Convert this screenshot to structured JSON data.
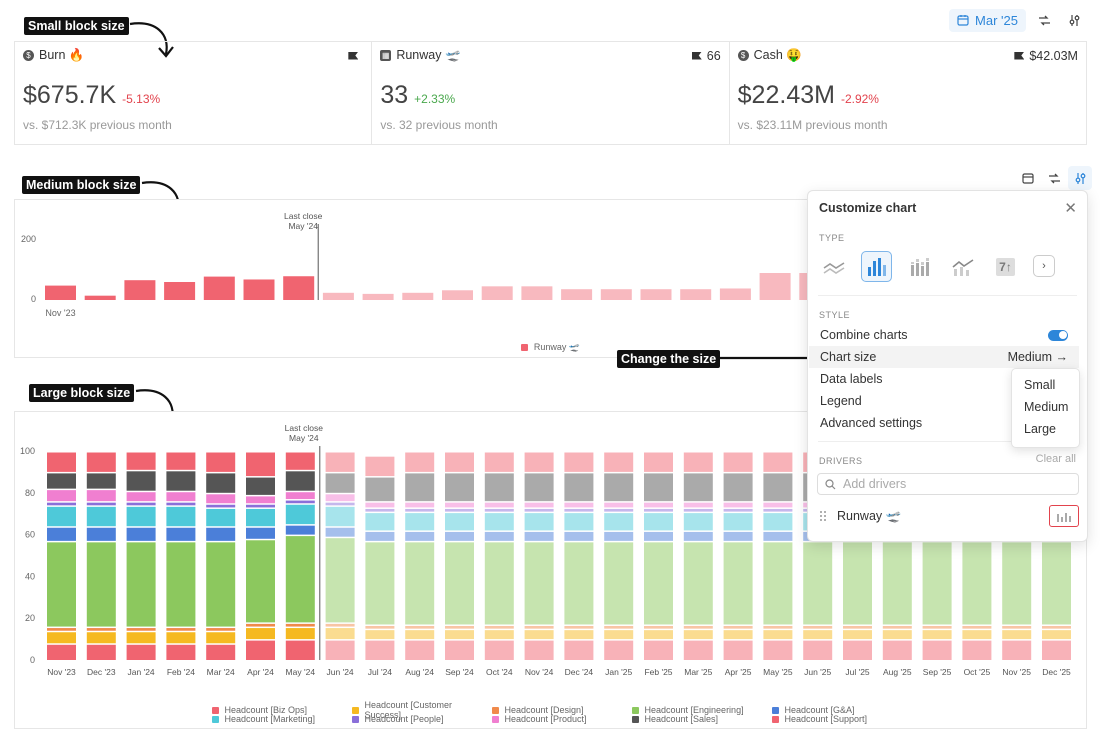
{
  "header": {
    "date_label": "Mar '25"
  },
  "annotations": {
    "small": "Small block size",
    "medium": "Medium block size",
    "large": "Large block size",
    "change": "Change the size"
  },
  "kpis": [
    {
      "name": "Burn 🔥",
      "right": "",
      "value": "$675.7K",
      "delta": "-5.13%",
      "delta_dir": "neg",
      "sub": "vs. $712.3K previous month",
      "icon": "dollar-icon"
    },
    {
      "name": "Runway 🛫",
      "right": "66",
      "value": "33",
      "delta": "+2.33%",
      "delta_dir": "pos",
      "sub": "vs. 32 previous month",
      "icon": "grid-icon"
    },
    {
      "name": "Cash 🤑",
      "right": "$42.03M",
      "value": "$22.43M",
      "delta": "-2.92%",
      "delta_dir": "neg",
      "sub": "vs. $23.11M previous month",
      "icon": "dollar-icon"
    }
  ],
  "panel": {
    "title": "Customize chart",
    "type_label": "TYPE",
    "style_label": "STYLE",
    "type_seven": "7↑",
    "combine_charts": "Combine charts",
    "chart_size": "Chart size",
    "chart_size_value": "Medium →",
    "data_labels": "Data labels",
    "legend": "Legend",
    "advanced": "Advanced settings",
    "drivers_label": "DRIVERS",
    "clear_all": "Clear all",
    "add_placeholder": "Add drivers",
    "driver_name": "Runway 🛫",
    "size_options": [
      "Small",
      "Medium",
      "Large"
    ]
  },
  "chart_data": [
    {
      "type": "bar",
      "title": "",
      "annotation": [
        "Last close",
        "May '24"
      ],
      "y_ticks": [
        "200",
        "0"
      ],
      "ylim": [
        0,
        200
      ],
      "x_tick_label": "Nov '23",
      "series": [
        {
          "name": "Runway 🛫",
          "color": "#f06470",
          "values": [
            40,
            12,
            55,
            50,
            65,
            57,
            66,
            20,
            17,
            20,
            27,
            38,
            38,
            30,
            30,
            30,
            30,
            32,
            75,
            75
          ]
        }
      ]
    },
    {
      "type": "bar",
      "stacked": true,
      "title": "",
      "annotation": [
        "Last close",
        "May '24"
      ],
      "y_ticks": [
        "100",
        "80",
        "60",
        "40",
        "20",
        "0"
      ],
      "ylim": [
        0,
        100
      ],
      "actual_count": 7,
      "categories": [
        "Nov '23",
        "Dec '23",
        "Jan '24",
        "Feb '24",
        "Mar '24",
        "Apr '24",
        "May '24",
        "Jun '24",
        "Jul '24",
        "Aug '24",
        "Sep '24",
        "Oct '24",
        "Nov '24",
        "Dec '24",
        "Jan '25",
        "Feb '25",
        "Mar '25",
        "Apr '25",
        "May '25",
        "Jun '25",
        "Jul '25",
        "Aug '25",
        "Sep '25",
        "Oct '25",
        "Nov '25",
        "Dec '25"
      ],
      "series": [
        {
          "name": "Headcount [Biz Ops]",
          "color": "#f06470",
          "values": [
            8,
            8,
            8,
            8,
            8,
            10,
            10,
            10,
            10,
            10,
            10,
            10,
            10,
            10,
            10,
            10,
            10,
            10,
            10,
            10,
            10,
            10,
            10,
            10,
            10,
            10
          ]
        },
        {
          "name": "Headcount [Customer Success]",
          "color": "#f5b921",
          "values": [
            6,
            6,
            6,
            6,
            6,
            6,
            6,
            6,
            5,
            5,
            5,
            5,
            5,
            5,
            5,
            5,
            5,
            5,
            5,
            5,
            5,
            5,
            5,
            5,
            5,
            5
          ]
        },
        {
          "name": "Headcount [Design]",
          "color": "#f08a4b",
          "values": [
            2,
            2,
            2,
            2,
            2,
            2,
            2,
            2,
            2,
            2,
            2,
            2,
            2,
            2,
            2,
            2,
            2,
            2,
            2,
            2,
            2,
            2,
            2,
            2,
            2,
            2
          ]
        },
        {
          "name": "Headcount [Engineering]",
          "color": "#8cc85e",
          "values": [
            41,
            41,
            41,
            41,
            41,
            40,
            42,
            41,
            40,
            40,
            40,
            40,
            40,
            40,
            40,
            40,
            40,
            40,
            40,
            40,
            40,
            40,
            40,
            40,
            40,
            40
          ]
        },
        {
          "name": "Headcount [G&A]",
          "color": "#4b7fd9",
          "values": [
            7,
            7,
            7,
            7,
            7,
            6,
            5,
            5,
            5,
            5,
            5,
            5,
            5,
            5,
            5,
            5,
            5,
            5,
            5,
            5,
            5,
            5,
            5,
            5,
            5,
            5
          ]
        },
        {
          "name": "Headcount [Marketing]",
          "color": "#4ec9d9",
          "values": [
            10,
            10,
            10,
            10,
            9,
            9,
            10,
            10,
            9,
            9,
            9,
            9,
            9,
            9,
            9,
            9,
            9,
            9,
            9,
            9,
            9,
            9,
            9,
            9,
            9,
            9
          ]
        },
        {
          "name": "Headcount [People]",
          "color": "#8a6fd9",
          "values": [
            2,
            2,
            2,
            2,
            2,
            2,
            2,
            2,
            2,
            2,
            2,
            2,
            2,
            2,
            2,
            2,
            2,
            2,
            2,
            2,
            2,
            2,
            2,
            2,
            2,
            2
          ]
        },
        {
          "name": "Headcount [Product]",
          "color": "#f07fd0",
          "values": [
            6,
            6,
            5,
            5,
            5,
            4,
            4,
            4,
            3,
            3,
            3,
            3,
            3,
            3,
            3,
            3,
            3,
            3,
            3,
            3,
            3,
            3,
            3,
            3,
            3,
            3
          ]
        },
        {
          "name": "Headcount [Sales]",
          "color": "#555555",
          "values": [
            8,
            8,
            10,
            10,
            10,
            9,
            10,
            10,
            12,
            14,
            14,
            14,
            14,
            14,
            14,
            14,
            14,
            14,
            14,
            14,
            14,
            14,
            14,
            14,
            14,
            14
          ]
        },
        {
          "name": "Headcount [Support]",
          "color": "#f06470",
          "values": [
            10,
            10,
            9,
            9,
            10,
            12,
            9,
            10,
            10,
            10,
            10,
            10,
            10,
            10,
            10,
            10,
            10,
            10,
            10,
            10,
            10,
            10,
            10,
            10,
            10,
            10
          ]
        }
      ]
    }
  ]
}
